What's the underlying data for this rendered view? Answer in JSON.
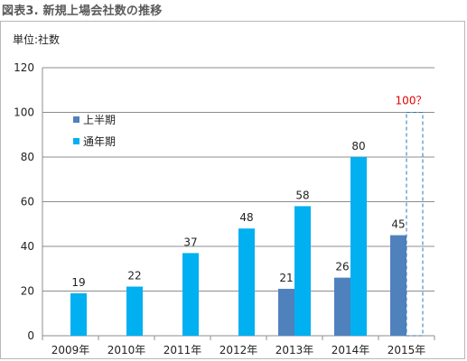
{
  "figure_title": "図表3. 新規上場会社数の推移",
  "chart_data": {
    "type": "bar",
    "unit_label": "単位:社数",
    "categories": [
      "2009年",
      "2010年",
      "2011年",
      "2012年",
      "2013年",
      "2014年",
      "2015年"
    ],
    "series": [
      {
        "name": "上半期",
        "color": "#4f81bd",
        "values": [
          null,
          null,
          null,
          null,
          21,
          26,
          45
        ]
      },
      {
        "name": "通年期",
        "color": "#00b0f0",
        "values": [
          19,
          22,
          37,
          48,
          58,
          80,
          null
        ]
      }
    ],
    "yticks": [
      0,
      20,
      40,
      60,
      80,
      100,
      120
    ],
    "ylim": [
      0,
      120
    ],
    "grid": true,
    "legend_position": "upper-left",
    "annotation": {
      "category": "2015年",
      "value": 100,
      "text": "100？",
      "color": "#e60000",
      "style": "dashed-outline"
    }
  }
}
